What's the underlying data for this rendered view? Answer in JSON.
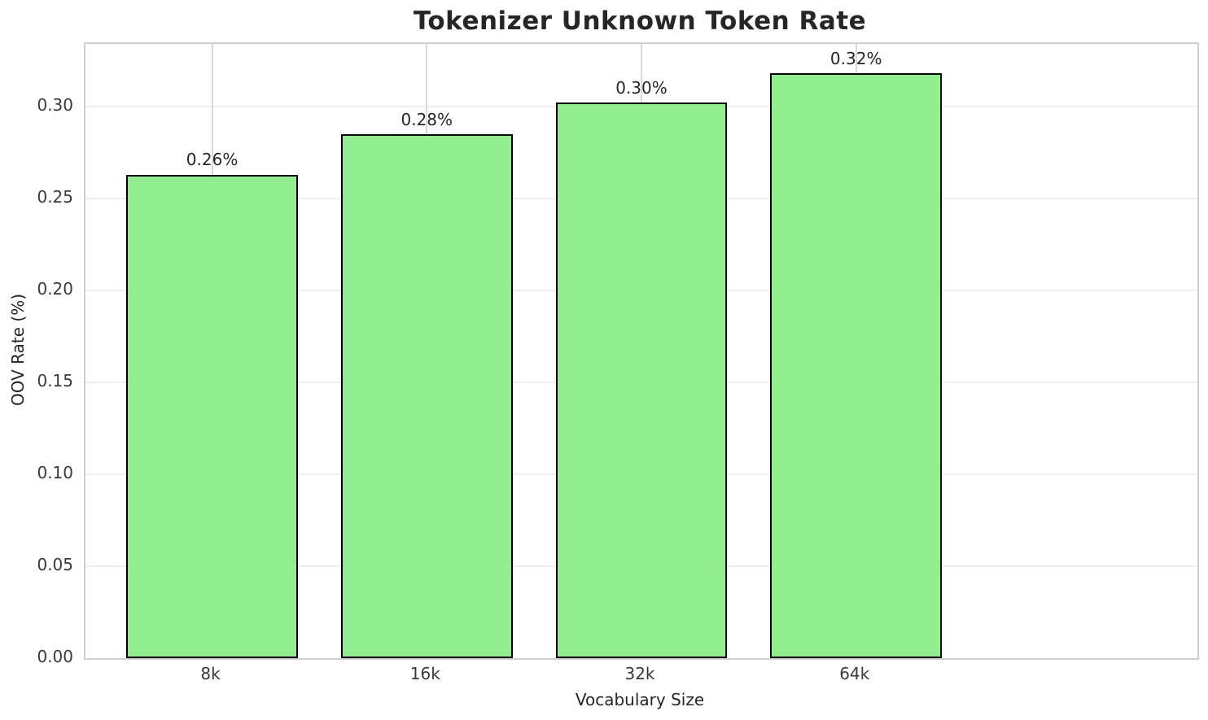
{
  "chart_data": {
    "type": "bar",
    "title": "Tokenizer Unknown Token Rate",
    "xlabel": "Vocabulary Size",
    "ylabel": "OOV Rate (%)",
    "categories": [
      "8k",
      "16k",
      "32k",
      "64k"
    ],
    "values": [
      0.263,
      0.285,
      0.302,
      0.318
    ],
    "bar_labels": [
      "0.26%",
      "0.28%",
      "0.30%",
      "0.32%"
    ],
    "yticks": [
      0.0,
      0.05,
      0.1,
      0.15,
      0.2,
      0.25,
      0.3
    ],
    "ytick_labels": [
      "0.00",
      "0.05",
      "0.10",
      "0.15",
      "0.20",
      "0.25",
      "0.30"
    ],
    "ylim": [
      0,
      0.334
    ],
    "grid": true,
    "legend": false,
    "colors": {
      "bar_fill": "#90EE90",
      "bar_edge": "#000000",
      "text": "#262626",
      "tick_text": "#3a3a3a",
      "grid_horizontal": "#eeeeee",
      "grid_vertical": "#d9d9d9",
      "spine": "#cfcfcf",
      "background": "#ffffff"
    }
  }
}
